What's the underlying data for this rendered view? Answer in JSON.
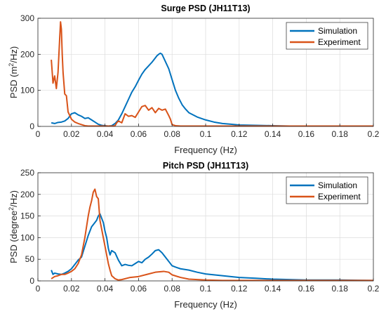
{
  "chart_data": [
    {
      "type": "line",
      "title": "Surge PSD (JH11T13)",
      "xlabel": "Frequency (Hz)",
      "ylabel_prefix": "PSD (m",
      "ylabel_sup": "2",
      "ylabel_suffix": "/Hz)",
      "xlim": [
        0,
        0.2
      ],
      "ylim": [
        0,
        300
      ],
      "xticks": [
        0,
        0.02,
        0.04,
        0.06,
        0.08,
        0.1,
        0.12,
        0.14,
        0.16,
        0.18,
        0.2
      ],
      "xtick_labels": [
        "0",
        "0.02",
        "0.04",
        "0.06",
        "0.08",
        "0.1",
        "0.12",
        "0.14",
        "0.16",
        "0.18",
        "0.2"
      ],
      "yticks": [
        0,
        100,
        200,
        300
      ],
      "ytick_labels": [
        "0",
        "100",
        "200",
        "300"
      ],
      "grid": true,
      "legend_position": "top-right",
      "series": [
        {
          "name": "Simulation",
          "color": "#0072BD",
          "x": [
            0.008,
            0.01,
            0.012,
            0.014,
            0.016,
            0.018,
            0.02,
            0.022,
            0.024,
            0.026,
            0.028,
            0.03,
            0.032,
            0.034,
            0.036,
            0.038,
            0.04,
            0.042,
            0.044,
            0.046,
            0.048,
            0.05,
            0.052,
            0.054,
            0.056,
            0.058,
            0.06,
            0.062,
            0.064,
            0.066,
            0.068,
            0.07,
            0.071,
            0.072,
            0.073,
            0.074,
            0.075,
            0.076,
            0.078,
            0.08,
            0.082,
            0.084,
            0.086,
            0.088,
            0.09,
            0.095,
            0.1,
            0.105,
            0.11,
            0.115,
            0.12,
            0.13,
            0.14,
            0.15,
            0.16,
            0.18,
            0.2
          ],
          "y": [
            10,
            8,
            11,
            12,
            15,
            22,
            35,
            38,
            32,
            28,
            22,
            24,
            18,
            12,
            6,
            3,
            2,
            1,
            2,
            8,
            18,
            35,
            55,
            75,
            95,
            110,
            128,
            145,
            158,
            168,
            178,
            190,
            196,
            200,
            203,
            200,
            190,
            180,
            160,
            130,
            100,
            78,
            60,
            48,
            38,
            26,
            18,
            12,
            8,
            6,
            4,
            3,
            2,
            1,
            1,
            1,
            1
          ]
        },
        {
          "name": "Experiment",
          "color": "#D95319",
          "x": [
            0.008,
            0.009,
            0.01,
            0.011,
            0.012,
            0.013,
            0.0135,
            0.014,
            0.0145,
            0.015,
            0.016,
            0.017,
            0.018,
            0.019,
            0.02,
            0.022,
            0.024,
            0.026,
            0.028,
            0.03,
            0.035,
            0.04,
            0.045,
            0.046,
            0.047,
            0.048,
            0.05,
            0.052,
            0.054,
            0.056,
            0.058,
            0.06,
            0.062,
            0.064,
            0.066,
            0.068,
            0.07,
            0.072,
            0.074,
            0.076,
            0.078,
            0.079,
            0.08,
            0.082,
            0.085,
            0.09,
            0.1,
            0.12,
            0.15,
            0.2
          ],
          "y": [
            185,
            120,
            140,
            105,
            150,
            245,
            290,
            270,
            200,
            150,
            90,
            85,
            40,
            30,
            20,
            12,
            8,
            5,
            2,
            1,
            1,
            1,
            1,
            2,
            10,
            15,
            10,
            35,
            28,
            30,
            25,
            40,
            55,
            58,
            45,
            52,
            38,
            50,
            45,
            48,
            30,
            20,
            5,
            2,
            1,
            1,
            1,
            1,
            1,
            1
          ]
        }
      ]
    },
    {
      "type": "line",
      "title": "Pitch PSD (JH11T13)",
      "xlabel": "Frequency (Hz)",
      "ylabel_prefix": "PSD (degree",
      "ylabel_sup": "2",
      "ylabel_suffix": "/Hz)",
      "xlim": [
        0,
        0.2
      ],
      "ylim": [
        0,
        250
      ],
      "xticks": [
        0,
        0.02,
        0.04,
        0.06,
        0.08,
        0.1,
        0.12,
        0.14,
        0.16,
        0.18,
        0.2
      ],
      "xtick_labels": [
        "0",
        "0.02",
        "0.04",
        "0.06",
        "0.08",
        "0.1",
        "0.12",
        "0.14",
        "0.16",
        "0.18",
        "0.2"
      ],
      "yticks": [
        0,
        50,
        100,
        150,
        200,
        250
      ],
      "ytick_labels": [
        "0",
        "50",
        "100",
        "150",
        "200",
        "250"
      ],
      "grid": true,
      "legend_position": "top-right",
      "series": [
        {
          "name": "Simulation",
          "color": "#0072BD",
          "x": [
            0.008,
            0.009,
            0.01,
            0.012,
            0.014,
            0.016,
            0.018,
            0.02,
            0.022,
            0.024,
            0.026,
            0.028,
            0.03,
            0.032,
            0.034,
            0.035,
            0.036,
            0.037,
            0.038,
            0.039,
            0.04,
            0.041,
            0.042,
            0.043,
            0.044,
            0.046,
            0.048,
            0.05,
            0.052,
            0.054,
            0.056,
            0.058,
            0.06,
            0.062,
            0.064,
            0.066,
            0.068,
            0.07,
            0.072,
            0.074,
            0.076,
            0.078,
            0.08,
            0.082,
            0.085,
            0.09,
            0.095,
            0.1,
            0.11,
            0.12,
            0.13,
            0.14,
            0.15,
            0.16,
            0.18,
            0.2
          ],
          "y": [
            25,
            15,
            18,
            16,
            15,
            18,
            22,
            28,
            38,
            48,
            55,
            80,
            105,
            125,
            135,
            140,
            150,
            155,
            145,
            135,
            115,
            100,
            75,
            60,
            70,
            65,
            48,
            35,
            38,
            36,
            35,
            40,
            45,
            42,
            50,
            55,
            62,
            70,
            72,
            65,
            55,
            45,
            35,
            32,
            28,
            25,
            20,
            16,
            12,
            8,
            6,
            4,
            3,
            2,
            2,
            1
          ]
        },
        {
          "name": "Experiment",
          "color": "#D95319",
          "x": [
            0.008,
            0.01,
            0.012,
            0.014,
            0.016,
            0.018,
            0.02,
            0.022,
            0.024,
            0.026,
            0.028,
            0.03,
            0.031,
            0.032,
            0.033,
            0.034,
            0.035,
            0.036,
            0.037,
            0.038,
            0.039,
            0.04,
            0.041,
            0.042,
            0.043,
            0.044,
            0.046,
            0.048,
            0.05,
            0.055,
            0.06,
            0.065,
            0.07,
            0.075,
            0.078,
            0.08,
            0.085,
            0.09,
            0.095,
            0.1,
            0.11,
            0.12,
            0.15,
            0.2
          ],
          "y": [
            5,
            10,
            12,
            15,
            15,
            18,
            22,
            28,
            40,
            60,
            100,
            150,
            170,
            185,
            205,
            212,
            195,
            190,
            140,
            120,
            100,
            80,
            60,
            40,
            25,
            12,
            5,
            2,
            3,
            8,
            10,
            15,
            20,
            22,
            20,
            14,
            8,
            4,
            3,
            2,
            1,
            1,
            1,
            1
          ]
        }
      ]
    }
  ]
}
